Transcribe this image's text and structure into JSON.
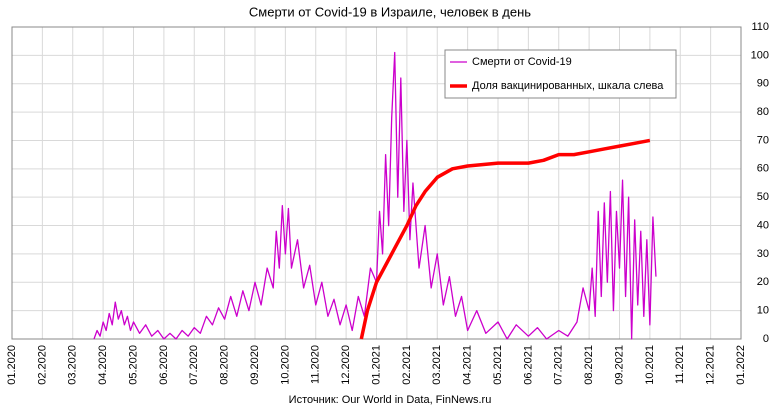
{
  "chart_data": {
    "type": "line",
    "title": "Смерти от Covid-19 в Израиле, человек в день",
    "source": "Источник: Our World in Data, FinNews.ru",
    "xlim": [
      0,
      24
    ],
    "xticks": [
      {
        "value": 0,
        "label": "01.2020"
      },
      {
        "value": 1,
        "label": "02.2020"
      },
      {
        "value": 2,
        "label": "03.2020"
      },
      {
        "value": 3,
        "label": "04.2020"
      },
      {
        "value": 4,
        "label": "05.2020"
      },
      {
        "value": 5,
        "label": "06.2020"
      },
      {
        "value": 6,
        "label": "07.2020"
      },
      {
        "value": 7,
        "label": "08.2020"
      },
      {
        "value": 8,
        "label": "09.2020"
      },
      {
        "value": 9,
        "label": "10.2020"
      },
      {
        "value": 10,
        "label": "11.2020"
      },
      {
        "value": 11,
        "label": "12.2020"
      },
      {
        "value": 12,
        "label": "01.2021"
      },
      {
        "value": 13,
        "label": "02.2021"
      },
      {
        "value": 14,
        "label": "03.2021"
      },
      {
        "value": 15,
        "label": "04.2021"
      },
      {
        "value": 16,
        "label": "05.2021"
      },
      {
        "value": 17,
        "label": "06.2021"
      },
      {
        "value": 18,
        "label": "07.2021"
      },
      {
        "value": 19,
        "label": "08.2021"
      },
      {
        "value": 20,
        "label": "09.2021"
      },
      {
        "value": 21,
        "label": "10.2021"
      },
      {
        "value": 22,
        "label": "11.2021"
      },
      {
        "value": 23,
        "label": "12.2021"
      },
      {
        "value": 24,
        "label": "01.2022"
      }
    ],
    "ylim": [
      0,
      110
    ],
    "yticks": [
      0,
      10,
      20,
      30,
      40,
      50,
      60,
      70,
      80,
      90,
      100,
      110
    ],
    "grid": true,
    "legend": "top-right",
    "series": [
      {
        "name": "Смерти от Covid-19",
        "color": "#cc00cc",
        "width": 1.3,
        "x": [
          2.7,
          2.8,
          2.9,
          3.0,
          3.1,
          3.2,
          3.3,
          3.4,
          3.5,
          3.6,
          3.7,
          3.8,
          3.9,
          4.0,
          4.2,
          4.4,
          4.6,
          4.8,
          5.0,
          5.2,
          5.4,
          5.6,
          5.8,
          6.0,
          6.2,
          6.4,
          6.6,
          6.8,
          7.0,
          7.2,
          7.4,
          7.6,
          7.8,
          8.0,
          8.2,
          8.4,
          8.6,
          8.7,
          8.8,
          8.9,
          9.0,
          9.1,
          9.2,
          9.4,
          9.6,
          9.8,
          10.0,
          10.2,
          10.4,
          10.6,
          10.8,
          11.0,
          11.2,
          11.4,
          11.6,
          11.8,
          12.0,
          12.1,
          12.2,
          12.3,
          12.4,
          12.5,
          12.6,
          12.7,
          12.8,
          12.9,
          13.0,
          13.1,
          13.2,
          13.4,
          13.6,
          13.8,
          14.0,
          14.2,
          14.4,
          14.6,
          14.8,
          15.0,
          15.3,
          15.6,
          16.0,
          16.3,
          16.6,
          17.0,
          17.3,
          17.6,
          18.0,
          18.3,
          18.6,
          18.8,
          19.0,
          19.1,
          19.2,
          19.3,
          19.4,
          19.5,
          19.6,
          19.7,
          19.8,
          19.9,
          20.0,
          20.1,
          20.2,
          20.3,
          20.4,
          20.5,
          20.6,
          20.7,
          20.8,
          20.9,
          21.0,
          21.1,
          21.2
        ],
        "values": [
          0,
          3,
          1,
          6,
          3,
          9,
          5,
          13,
          7,
          10,
          5,
          8,
          3,
          6,
          2,
          5,
          1,
          3,
          0,
          2,
          0,
          3,
          1,
          4,
          2,
          8,
          5,
          11,
          7,
          15,
          8,
          17,
          10,
          20,
          12,
          25,
          18,
          38,
          25,
          47,
          30,
          46,
          25,
          35,
          18,
          26,
          12,
          20,
          8,
          14,
          5,
          12,
          3,
          15,
          8,
          25,
          20,
          45,
          30,
          65,
          40,
          78,
          101,
          50,
          92,
          45,
          70,
          35,
          55,
          25,
          40,
          18,
          30,
          12,
          22,
          8,
          15,
          3,
          10,
          2,
          6,
          0,
          5,
          1,
          4,
          0,
          3,
          1,
          6,
          18,
          10,
          25,
          8,
          45,
          15,
          48,
          20,
          52,
          10,
          45,
          25,
          56,
          15,
          50,
          0,
          42,
          12,
          38,
          8,
          35,
          5,
          43,
          22
        ]
      },
      {
        "name": "Доля вакцинированных, шкала слева",
        "color": "#ff0000",
        "width": 3.5,
        "x": [
          11.5,
          11.7,
          12.0,
          12.3,
          12.6,
          13.0,
          13.3,
          13.6,
          14.0,
          14.5,
          15.0,
          16.0,
          17.0,
          17.5,
          18.0,
          18.5,
          19.0,
          19.5,
          20.0,
          20.5,
          21.0
        ],
        "values": [
          0,
          10,
          20,
          26,
          32,
          40,
          47,
          52,
          57,
          60,
          61,
          62,
          62,
          63,
          65,
          65,
          66,
          67,
          68,
          69,
          70
        ]
      }
    ]
  }
}
